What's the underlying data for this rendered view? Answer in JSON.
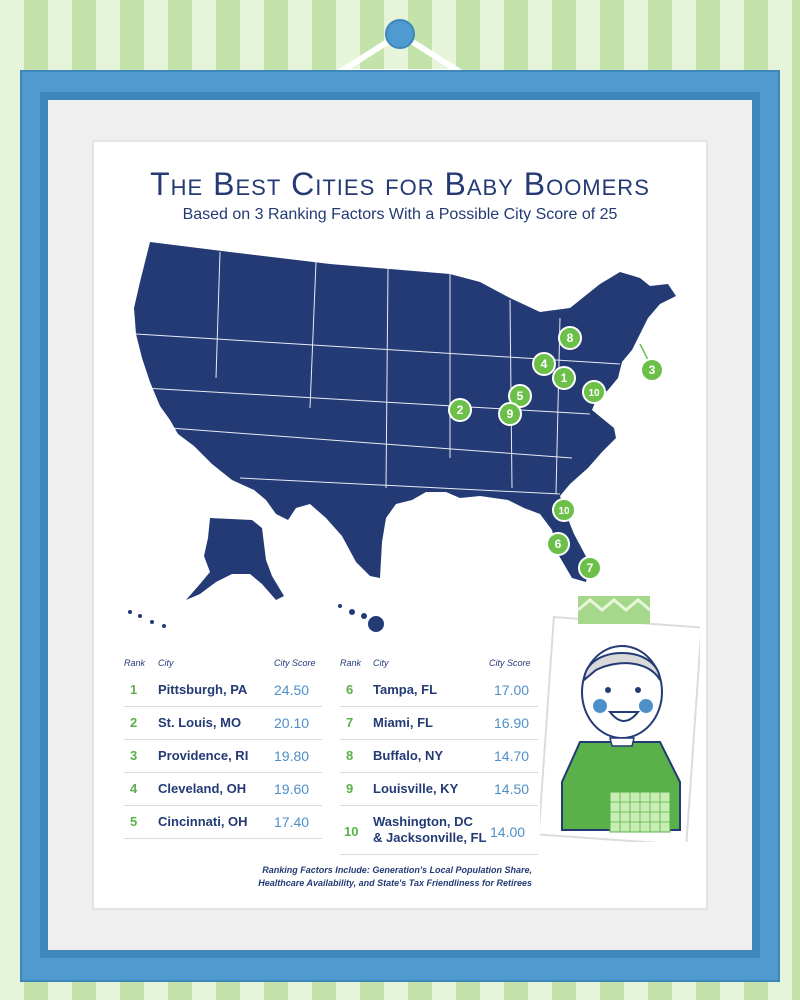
{
  "title": "The Best Cities for Baby Boomers",
  "subtitle": "Based on 3 Ranking Factors With a Possible City Score of 25",
  "table": {
    "headers": {
      "rank": "Rank",
      "city": "City",
      "score": "City Score"
    },
    "left": [
      {
        "rank": "1",
        "city": "Pittsburgh, PA",
        "score": "24.50"
      },
      {
        "rank": "2",
        "city": "St. Louis, MO",
        "score": "20.10"
      },
      {
        "rank": "3",
        "city": "Providence, RI",
        "score": "19.80"
      },
      {
        "rank": "4",
        "city": "Cleveland, OH",
        "score": "19.60"
      },
      {
        "rank": "5",
        "city": "Cincinnati, OH",
        "score": "17.40"
      }
    ],
    "right": [
      {
        "rank": "6",
        "city": "Tampa, FL",
        "score": "17.00"
      },
      {
        "rank": "7",
        "city": "Miami, FL",
        "score": "16.90"
      },
      {
        "rank": "8",
        "city": "Buffalo, NY",
        "score": "14.70"
      },
      {
        "rank": "9",
        "city": "Louisville, KY",
        "score": "14.50"
      },
      {
        "rank": "10",
        "city_line1": "Washington, DC",
        "city_line2": "& Jacksonville, FL",
        "score": "14.00"
      }
    ]
  },
  "map_markers": [
    "1",
    "2",
    "3",
    "4",
    "5",
    "6",
    "7",
    "8",
    "9",
    "10",
    "10"
  ],
  "footnote_line1": "Ranking Factors Include: Generation's Local Population Share,",
  "footnote_line2": "Healthcare Availability, and State's Tax Friendliness for Retirees",
  "colors": {
    "navy": "#233a75",
    "green": "#5ab14a",
    "blue": "#4d8fc8",
    "frame": "#4f9ad0"
  }
}
